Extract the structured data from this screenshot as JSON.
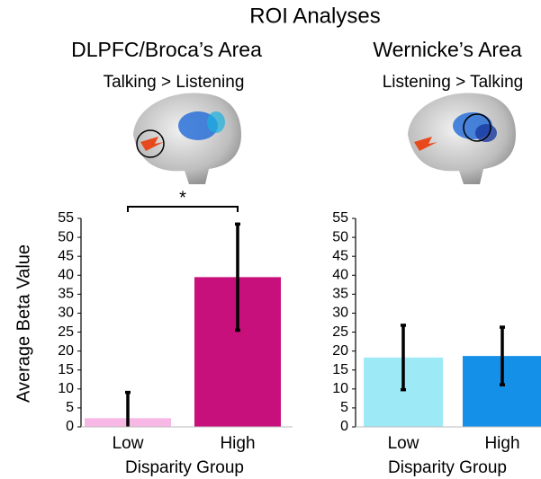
{
  "title": "ROI  Analyses",
  "chart_data": [
    {
      "type": "bar",
      "title": "DLPFC/Broca’s Area",
      "subtitle": "Talking > Listening",
      "categories": [
        "Low",
        "High"
      ],
      "values": [
        2.3,
        39.5
      ],
      "errors": [
        6.8,
        14
      ],
      "colors": [
        "#f8b8e6",
        "#c8107c"
      ],
      "ylim": [
        0,
        55
      ],
      "yticks": [
        0,
        5,
        10,
        15,
        20,
        25,
        30,
        35,
        40,
        45,
        50,
        55
      ],
      "y_label": "Average Beta Value",
      "x_label": "Disparity Group",
      "annotation": "*"
    },
    {
      "type": "bar",
      "title": "Wernicke’s Area",
      "subtitle": "Listening > Talking",
      "categories": [
        "Low",
        "High"
      ],
      "values": [
        18.3,
        18.7
      ],
      "errors": [
        8.5,
        7.6
      ],
      "colors": [
        "#9ee9f6",
        "#1590e8"
      ],
      "ylim": [
        0,
        55
      ],
      "yticks": [
        0,
        5,
        10,
        15,
        20,
        25,
        30,
        35,
        40,
        45,
        50,
        55
      ],
      "x_label": "Disparity Group"
    }
  ]
}
